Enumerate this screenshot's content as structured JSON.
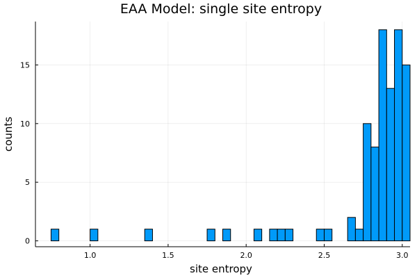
{
  "chart_data": {
    "type": "bar",
    "title": "EAA Model: single site entropy",
    "xlabel": "site entropy",
    "ylabel": "counts",
    "xlim": [
      0.65,
      3.05
    ],
    "ylim": [
      -0.5,
      18.7
    ],
    "xticks": [
      1.0,
      1.5,
      2.0,
      2.5,
      3.0
    ],
    "xtick_labels": [
      "1.0",
      "1.5",
      "2.0",
      "2.5",
      "3.0"
    ],
    "yticks": [
      0,
      5,
      10,
      15
    ],
    "ytick_labels": [
      "0",
      "5",
      "10",
      "15"
    ],
    "grid": true,
    "bar_color": "#009af9",
    "bin_start": 0.75,
    "bin_width": 0.05,
    "values": [
      1,
      0,
      0,
      0,
      0,
      1,
      0,
      0,
      0,
      0,
      0,
      0,
      1,
      0,
      0,
      0,
      0,
      0,
      0,
      0,
      1,
      0,
      1,
      0,
      0,
      0,
      1,
      0,
      1,
      1,
      1,
      0,
      0,
      0,
      1,
      1,
      0,
      0,
      2,
      1,
      10,
      8,
      18,
      13,
      18,
      15
    ]
  }
}
